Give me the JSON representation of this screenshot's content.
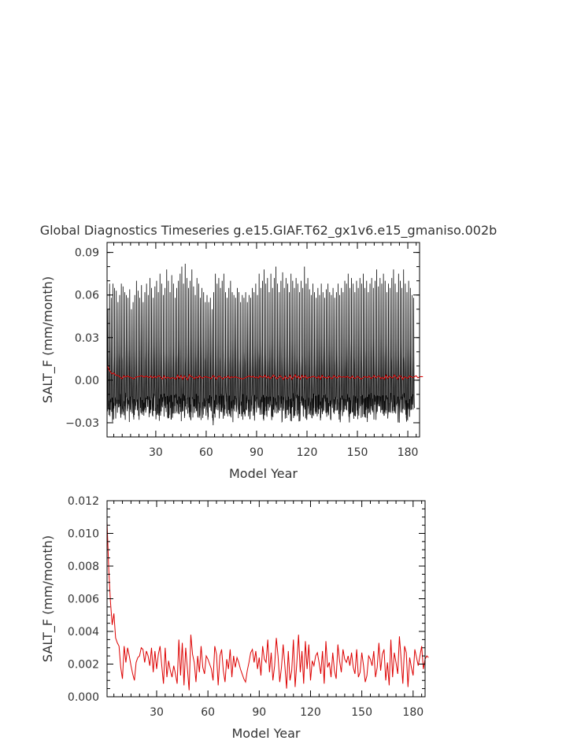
{
  "title": "Global Diagnostics Timeseries g.e15.GIAF.T62_gx1v6.e15_gmaniso.002b",
  "chart_data": [
    {
      "type": "line",
      "xlabel": "Model Year",
      "ylabel": "SALT_F (mm/month)",
      "xlim": [
        1,
        187
      ],
      "ylim": [
        -0.04,
        0.097
      ],
      "xticks": [
        30,
        60,
        90,
        120,
        150,
        180
      ],
      "yticks": [
        -0.03,
        0.0,
        0.03,
        0.06,
        0.09
      ],
      "ytick_labels": [
        "−0.03",
        "0.00",
        "0.03",
        "0.06",
        "0.09"
      ],
      "series": [
        {
          "color": "#000000",
          "description_values": "monthly values oscillating roughly between -0.033 and 0.082",
          "annual_peaks": [
            0.05,
            0.068,
            0.058,
            0.068,
            0.065,
            0.063,
            0.055,
            0.06,
            0.068,
            0.066,
            0.062,
            0.06,
            0.058,
            0.064,
            0.05,
            0.055,
            0.06,
            0.07,
            0.063,
            0.058,
            0.067,
            0.055,
            0.062,
            0.068,
            0.06,
            0.072,
            0.065,
            0.058,
            0.066,
            0.07,
            0.062,
            0.075,
            0.068,
            0.06,
            0.065,
            0.078,
            0.07,
            0.062,
            0.074,
            0.068,
            0.058,
            0.065,
            0.07,
            0.075,
            0.08,
            0.068,
            0.082,
            0.072,
            0.065,
            0.07,
            0.078,
            0.066,
            0.06,
            0.072,
            0.068,
            0.058,
            0.065,
            0.062,
            0.055,
            0.06,
            0.055,
            0.058,
            0.05,
            0.062,
            0.075,
            0.068,
            0.072,
            0.065,
            0.07,
            0.075,
            0.062,
            0.058,
            0.065,
            0.07,
            0.062,
            0.06,
            0.058,
            0.065,
            0.062,
            0.055,
            0.06,
            0.058,
            0.062,
            0.055,
            0.06,
            0.058,
            0.065,
            0.062,
            0.068,
            0.06,
            0.075,
            0.065,
            0.07,
            0.078,
            0.068,
            0.072,
            0.062,
            0.075,
            0.065,
            0.072,
            0.08,
            0.068,
            0.062,
            0.07,
            0.076,
            0.065,
            0.072,
            0.068,
            0.062,
            0.075,
            0.07,
            0.065,
            0.072,
            0.068,
            0.062,
            0.07,
            0.065,
            0.08,
            0.068,
            0.072,
            0.064,
            0.06,
            0.068,
            0.062,
            0.058,
            0.065,
            0.06,
            0.068,
            0.062,
            0.058,
            0.064,
            0.068,
            0.062,
            0.06,
            0.065,
            0.058,
            0.062,
            0.068,
            0.06,
            0.065,
            0.062,
            0.07,
            0.068,
            0.075,
            0.065,
            0.072,
            0.068,
            0.062,
            0.07,
            0.065,
            0.072,
            0.068,
            0.075,
            0.065,
            0.07,
            0.062,
            0.068,
            0.072,
            0.065,
            0.07,
            0.078,
            0.066,
            0.072,
            0.068,
            0.075,
            0.07,
            0.062,
            0.068,
            0.065,
            0.072,
            0.078,
            0.068,
            0.062,
            0.075,
            0.07,
            0.065,
            0.078,
            0.068,
            0.062,
            0.07,
            0.065,
            0.06,
            0.058
          ],
          "annual_troughs": [
            -0.022,
            -0.028,
            -0.025,
            -0.03,
            -0.022,
            -0.028,
            -0.026,
            -0.024,
            -0.03,
            -0.025,
            -0.028,
            -0.022,
            -0.027,
            -0.03,
            -0.024,
            -0.028,
            -0.025,
            -0.022,
            -0.026,
            -0.03,
            -0.024,
            -0.028,
            -0.022,
            -0.025,
            -0.027,
            -0.03,
            -0.024,
            -0.026,
            -0.022,
            -0.028,
            -0.025,
            -0.03,
            -0.024,
            -0.027,
            -0.022,
            -0.026,
            -0.028,
            -0.025,
            -0.03,
            -0.024,
            -0.022,
            -0.026,
            -0.028,
            -0.025,
            -0.03,
            -0.024,
            -0.027,
            -0.022,
            -0.026,
            -0.03,
            -0.025,
            -0.028,
            -0.024,
            -0.022,
            -0.027,
            -0.03,
            -0.025,
            -0.028,
            -0.026,
            -0.024,
            -0.03,
            -0.022,
            -0.028,
            -0.034,
            -0.03,
            -0.025,
            -0.028,
            -0.024,
            -0.026,
            -0.03,
            -0.022,
            -0.028,
            -0.025,
            -0.027,
            -0.03,
            -0.024,
            -0.026,
            -0.022,
            -0.028,
            -0.025,
            -0.03,
            -0.024,
            -0.027,
            -0.022,
            -0.026,
            -0.028,
            -0.025,
            -0.03,
            -0.024,
            -0.022,
            -0.026,
            -0.028,
            -0.025,
            -0.03,
            -0.024,
            -0.027,
            -0.022,
            -0.026,
            -0.03,
            -0.025,
            -0.028,
            -0.024,
            -0.022,
            -0.027,
            -0.03,
            -0.025,
            -0.028,
            -0.026,
            -0.024,
            -0.03,
            -0.022,
            -0.028,
            -0.025,
            -0.027,
            -0.03,
            -0.024,
            -0.026,
            -0.022,
            -0.028,
            -0.025,
            -0.03,
            -0.033,
            -0.027,
            -0.022,
            -0.026,
            -0.028,
            -0.025,
            -0.03,
            -0.024,
            -0.022,
            -0.026,
            -0.028,
            -0.025,
            -0.03,
            -0.024,
            -0.027,
            -0.022,
            -0.026,
            -0.03,
            -0.025,
            -0.028,
            -0.024,
            -0.022,
            -0.027,
            -0.03,
            -0.025,
            -0.028,
            -0.026,
            -0.024,
            -0.03,
            -0.022,
            -0.028,
            -0.025,
            -0.027,
            -0.03,
            -0.024,
            -0.026,
            -0.022,
            -0.028,
            -0.025,
            -0.03,
            -0.024,
            -0.027,
            -0.022,
            -0.026,
            -0.028,
            -0.025,
            -0.03,
            -0.024,
            -0.022,
            -0.026,
            -0.028,
            -0.025,
            -0.03,
            -0.024,
            -0.027,
            -0.022,
            -0.026,
            -0.03,
            -0.025,
            -0.028,
            -0.024,
            -0.022,
            -0.027,
            -0.03,
            -0.025,
            -0.028
          ]
        },
        {
          "color": "#dd0000",
          "description_values": "annual mean, approximately 0.002 after an initial spin-up near 0.011",
          "values_from": "chart_data.1.series.0.values"
        }
      ]
    },
    {
      "type": "line",
      "xlabel": "Model Year",
      "ylabel": "SALT_F (mm/month)",
      "xlim": [
        1,
        187
      ],
      "ylim": [
        0.0,
        0.012
      ],
      "xticks": [
        30,
        60,
        90,
        120,
        150,
        180
      ],
      "yticks": [
        0.0,
        0.002,
        0.004,
        0.006,
        0.008,
        0.01,
        0.012
      ],
      "ytick_labels": [
        "0.000",
        "0.002",
        "0.004",
        "0.006",
        "0.008",
        "0.010",
        "0.012"
      ],
      "series": [
        {
          "color": "#dd0000",
          "x_start": 1,
          "x_step": 1,
          "values": [
            0.0107,
            0.0078,
            0.0058,
            0.0044,
            0.0051,
            0.0036,
            0.0033,
            0.0031,
            0.0018,
            0.0011,
            0.0031,
            0.0021,
            0.003,
            0.0025,
            0.0019,
            0.0014,
            0.001,
            0.0021,
            0.0024,
            0.0025,
            0.003,
            0.0029,
            0.0021,
            0.0028,
            0.0025,
            0.0019,
            0.003,
            0.0015,
            0.0028,
            0.0017,
            0.0026,
            0.0031,
            0.0019,
            0.0008,
            0.003,
            0.0012,
            0.0022,
            0.0016,
            0.0012,
            0.0019,
            0.0014,
            0.0008,
            0.0035,
            0.0013,
            0.0033,
            0.0007,
            0.003,
            0.0017,
            0.0004,
            0.0038,
            0.0026,
            0.0021,
            0.0009,
            0.0025,
            0.0015,
            0.0031,
            0.0018,
            0.0014,
            0.0025,
            0.0023,
            0.002,
            0.0017,
            0.001,
            0.0031,
            0.0026,
            0.0007,
            0.0025,
            0.0029,
            0.0016,
            0.0009,
            0.0023,
            0.0017,
            0.0029,
            0.0012,
            0.0025,
            0.0018,
            0.0024,
            0.0021,
            0.0017,
            0.0014,
            0.0011,
            0.0009,
            0.0016,
            0.0021,
            0.0027,
            0.0029,
            0.0021,
            0.0028,
            0.0017,
            0.0024,
            0.0013,
            0.0031,
            0.0023,
            0.0021,
            0.0035,
            0.0015,
            0.0027,
            0.001,
            0.0019,
            0.0036,
            0.0025,
            0.0009,
            0.0018,
            0.0032,
            0.0019,
            0.0005,
            0.0028,
            0.001,
            0.0016,
            0.0035,
            0.0006,
            0.0021,
            0.0038,
            0.0015,
            0.0028,
            0.0008,
            0.0034,
            0.0017,
            0.0032,
            0.001,
            0.0022,
            0.0019,
            0.0025,
            0.0027,
            0.0021,
            0.0014,
            0.0028,
            0.0008,
            0.0034,
            0.0018,
            0.0021,
            0.0012,
            0.0027,
            0.0016,
            0.0011,
            0.0032,
            0.0022,
            0.0015,
            0.0029,
            0.0023,
            0.0021,
            0.0025,
            0.0019,
            0.0027,
            0.0018,
            0.0014,
            0.0029,
            0.0012,
            0.0015,
            0.0027,
            0.0019,
            0.0009,
            0.0013,
            0.0025,
            0.0023,
            0.0019,
            0.0028,
            0.0012,
            0.0018,
            0.0033,
            0.0016,
            0.0026,
            0.0029,
            0.001,
            0.0021,
            0.0007,
            0.0035,
            0.0012,
            0.0027,
            0.0021,
            0.0014,
            0.0037,
            0.0023,
            0.0008,
            0.0031,
            0.0027,
            0.0006,
            0.0024,
            0.0018,
            0.0013,
            0.0029,
            0.0024,
            0.0019,
            0.0025,
            0.0031,
            0.0017,
            0.0023,
            0.0025,
            0.0024
          ]
        }
      ]
    }
  ]
}
